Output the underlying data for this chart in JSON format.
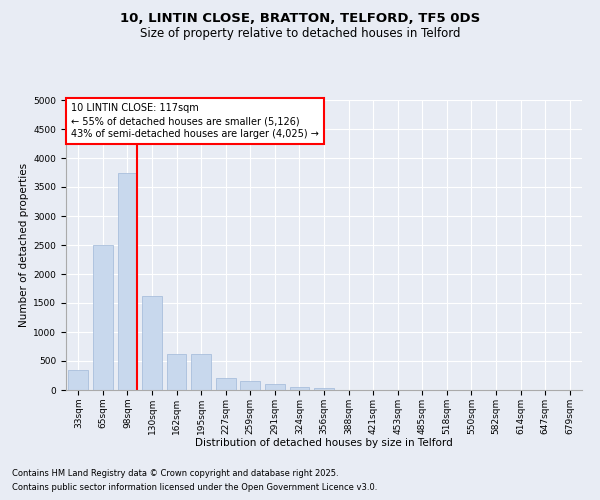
{
  "title1": "10, LINTIN CLOSE, BRATTON, TELFORD, TF5 0DS",
  "title2": "Size of property relative to detached houses in Telford",
  "xlabel": "Distribution of detached houses by size in Telford",
  "ylabel": "Number of detached properties",
  "bar_labels": [
    "33sqm",
    "65sqm",
    "98sqm",
    "130sqm",
    "162sqm",
    "195sqm",
    "227sqm",
    "259sqm",
    "291sqm",
    "324sqm",
    "356sqm",
    "388sqm",
    "421sqm",
    "453sqm",
    "485sqm",
    "518sqm",
    "550sqm",
    "582sqm",
    "614sqm",
    "647sqm",
    "679sqm"
  ],
  "bar_values": [
    350,
    2500,
    3750,
    1620,
    620,
    620,
    200,
    150,
    100,
    55,
    40,
    0,
    0,
    0,
    0,
    0,
    0,
    0,
    0,
    0,
    0
  ],
  "bar_color": "#c8d8ed",
  "bar_edge_color": "#a0b8d8",
  "vline_color": "red",
  "annotation_text": "10 LINTIN CLOSE: 117sqm\n← 55% of detached houses are smaller (5,126)\n43% of semi-detached houses are larger (4,025) →",
  "annotation_box_color": "white",
  "annotation_box_edge": "red",
  "ylim": [
    0,
    5000
  ],
  "yticks": [
    0,
    500,
    1000,
    1500,
    2000,
    2500,
    3000,
    3500,
    4000,
    4500,
    5000
  ],
  "bg_color": "#e8ecf4",
  "plot_bg_color": "#e8ecf4",
  "footer1": "Contains HM Land Registry data © Crown copyright and database right 2025.",
  "footer2": "Contains public sector information licensed under the Open Government Licence v3.0.",
  "title1_fontsize": 9.5,
  "title2_fontsize": 8.5,
  "axis_label_fontsize": 7.5,
  "tick_fontsize": 6.5,
  "annotation_fontsize": 7,
  "footer_fontsize": 6
}
